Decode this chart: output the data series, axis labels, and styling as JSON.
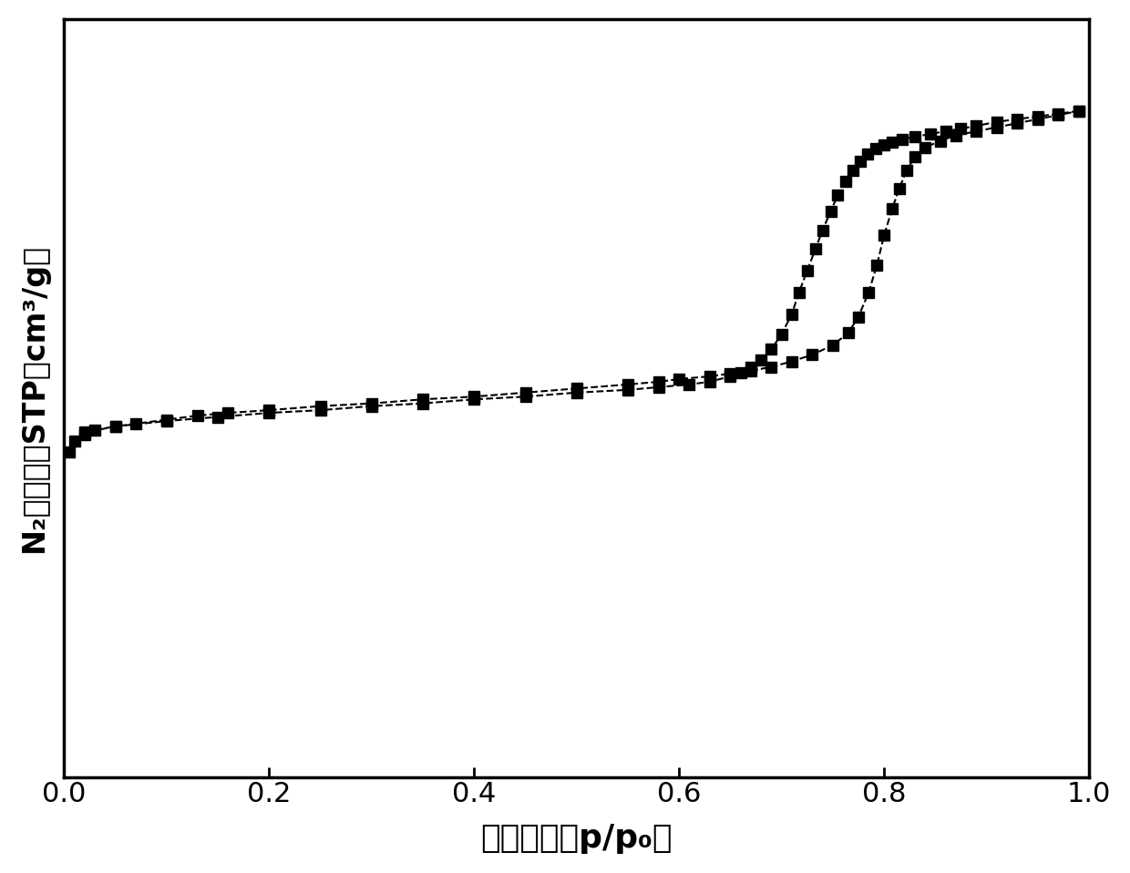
{
  "adsorption_x": [
    0.005,
    0.01,
    0.02,
    0.03,
    0.05,
    0.07,
    0.1,
    0.13,
    0.16,
    0.2,
    0.25,
    0.3,
    0.35,
    0.4,
    0.45,
    0.5,
    0.55,
    0.58,
    0.6,
    0.63,
    0.65,
    0.67,
    0.69,
    0.71,
    0.73,
    0.75,
    0.765,
    0.775,
    0.785,
    0.793,
    0.8,
    0.808,
    0.815,
    0.822,
    0.83,
    0.84,
    0.855,
    0.87,
    0.89,
    0.91,
    0.93,
    0.95,
    0.97,
    0.99
  ],
  "adsorption_y": [
    240,
    248,
    253,
    256,
    259,
    261,
    264,
    267,
    269,
    271,
    274,
    276,
    279,
    281,
    284,
    287,
    290,
    292,
    294,
    296,
    298,
    300,
    303,
    307,
    312,
    319,
    328,
    340,
    358,
    378,
    400,
    420,
    435,
    448,
    458,
    465,
    470,
    474,
    477,
    480,
    483,
    486,
    489,
    492
  ],
  "desorption_x": [
    0.99,
    0.97,
    0.95,
    0.93,
    0.91,
    0.89,
    0.875,
    0.86,
    0.845,
    0.83,
    0.818,
    0.808,
    0.8,
    0.792,
    0.784,
    0.777,
    0.77,
    0.763,
    0.755,
    0.748,
    0.74,
    0.733,
    0.725,
    0.717,
    0.71,
    0.7,
    0.69,
    0.68,
    0.67,
    0.66,
    0.65,
    0.63,
    0.61,
    0.58,
    0.55,
    0.5,
    0.45,
    0.4,
    0.35,
    0.3,
    0.25,
    0.2,
    0.15,
    0.1,
    0.05,
    0.02
  ],
  "desorption_y": [
    492,
    490,
    488,
    486,
    484,
    481,
    479,
    477,
    475,
    473,
    471,
    469,
    467,
    464,
    460,
    455,
    448,
    440,
    430,
    418,
    404,
    390,
    374,
    358,
    342,
    327,
    316,
    308,
    303,
    299,
    296,
    292,
    290,
    288,
    286,
    284,
    281,
    279,
    276,
    274,
    271,
    269,
    266,
    263,
    259,
    255
  ],
  "xlabel": "相对压力（p/p₀）",
  "ylabel": "N₂吸附量（STP，cm³/g）",
  "xlim": [
    0.0,
    1.0
  ],
  "ylim": [
    0,
    560
  ],
  "xticks": [
    0.0,
    0.2,
    0.4,
    0.6,
    0.8,
    1.0
  ],
  "marker": "s",
  "marker_size": 9,
  "line_style": "--",
  "line_color": "black",
  "marker_color": "black",
  "background_color": "white",
  "axis_linewidth": 2.5,
  "xlabel_fontsize": 26,
  "ylabel_fontsize": 24,
  "tick_fontsize": 22
}
